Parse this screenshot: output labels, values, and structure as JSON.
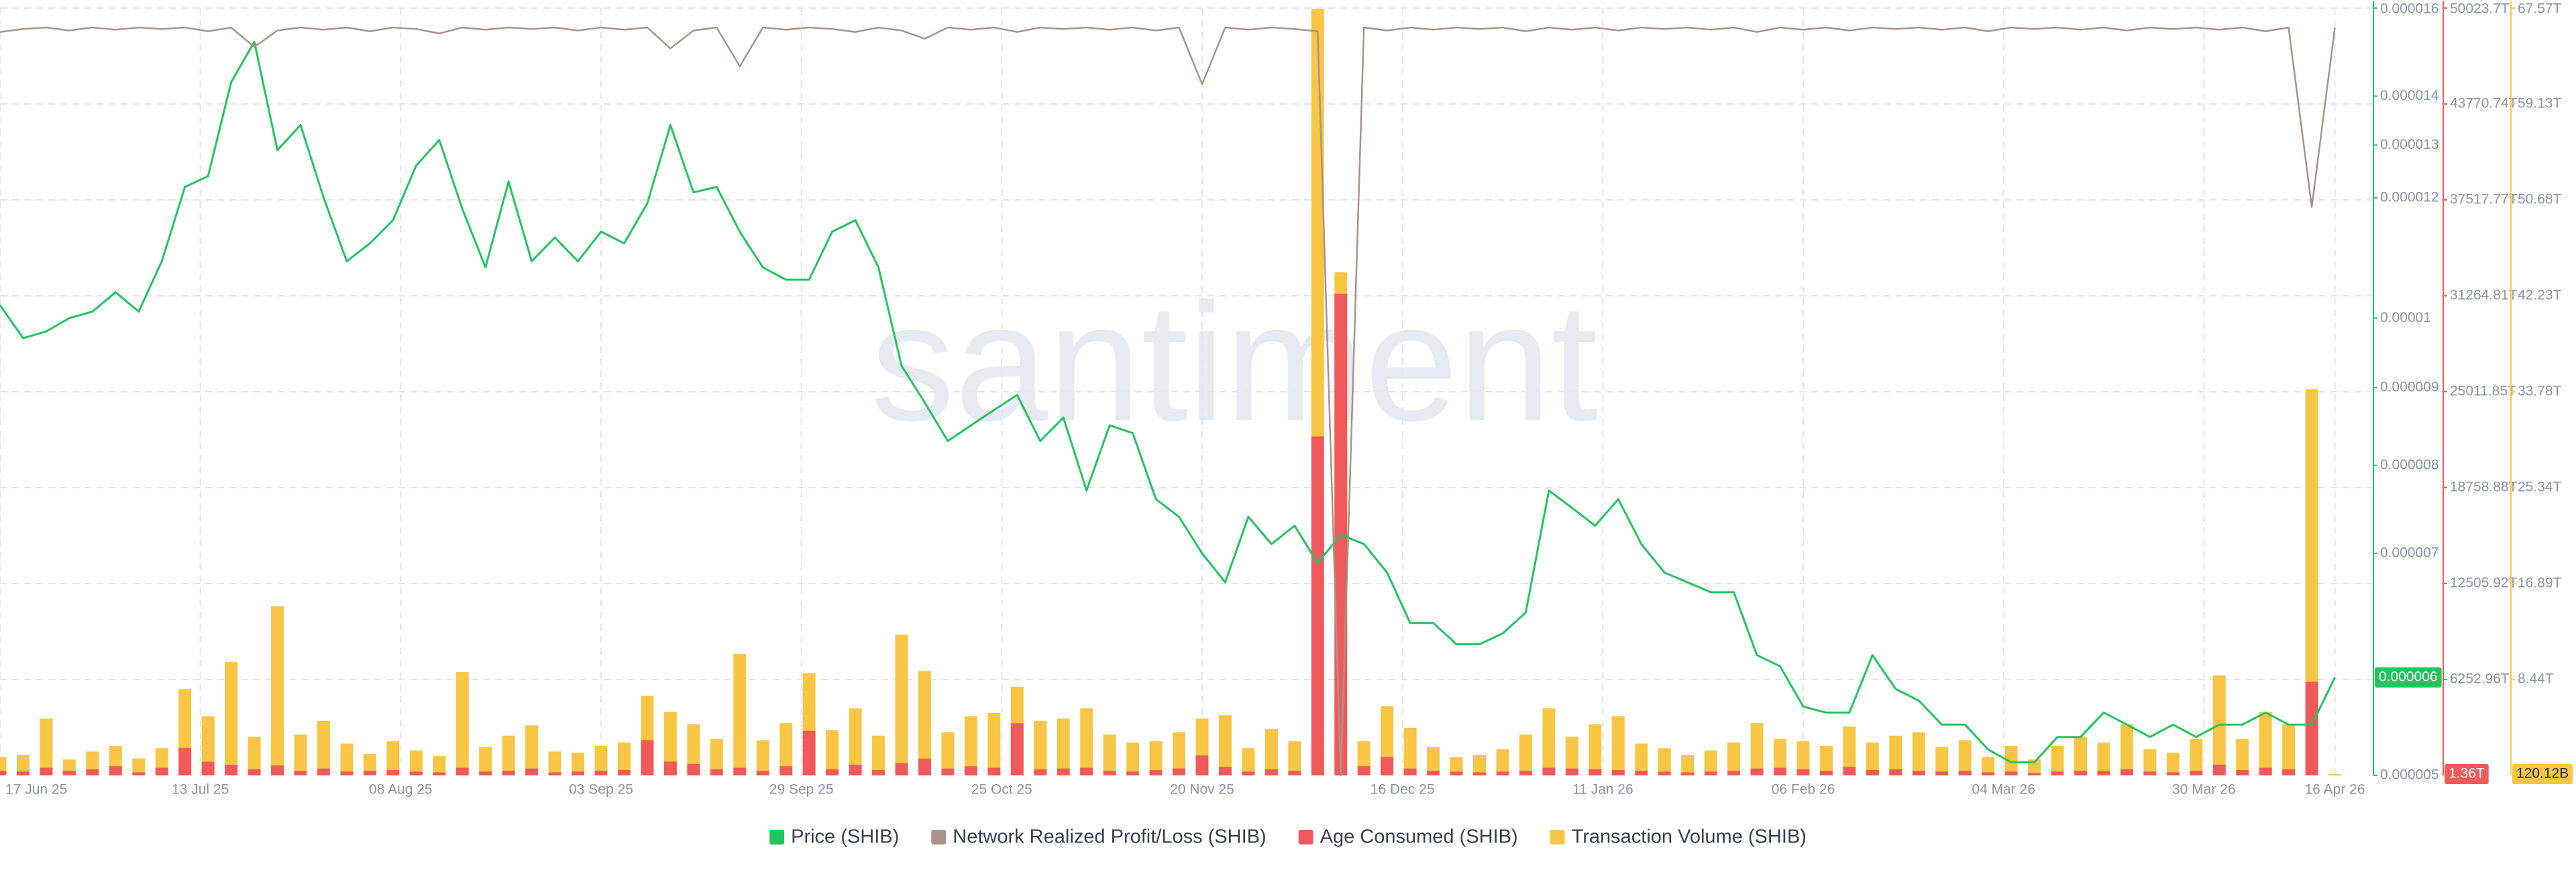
{
  "chart_data": {
    "type": "combo",
    "watermark": "santiment",
    "legend": "bottom",
    "grid": true,
    "x": [
      "17 Jun 25",
      "20 Jun 25",
      "23 Jun 25",
      "26 Jun 25",
      "29 Jun 25",
      "02 Jul 25",
      "05 Jul 25",
      "08 Jul 25",
      "11 Jul 25",
      "14 Jul 25",
      "17 Jul 25",
      "20 Jul 25",
      "23 Jul 25",
      "26 Jul 25",
      "29 Jul 25",
      "01 Aug 25",
      "04 Aug 25",
      "07 Aug 25",
      "10 Aug 25",
      "13 Aug 25",
      "16 Aug 25",
      "19 Aug 25",
      "22 Aug 25",
      "25 Aug 25",
      "28 Aug 25",
      "31 Aug 25",
      "03 Sep 25",
      "06 Sep 25",
      "09 Sep 25",
      "12 Sep 25",
      "15 Sep 25",
      "18 Sep 25",
      "21 Sep 25",
      "24 Sep 25",
      "27 Sep 25",
      "30 Sep 25",
      "03 Oct 25",
      "06 Oct 25",
      "09 Oct 25",
      "12 Oct 25",
      "15 Oct 25",
      "18 Oct 25",
      "21 Oct 25",
      "24 Oct 25",
      "27 Oct 25",
      "30 Oct 25",
      "02 Nov 25",
      "05 Nov 25",
      "08 Nov 25",
      "11 Nov 25",
      "14 Nov 25",
      "17 Nov 25",
      "20 Nov 25",
      "23 Nov 25",
      "26 Nov 25",
      "29 Nov 25",
      "02 Dec 25",
      "05 Dec 25",
      "08 Dec 25",
      "11 Dec 25",
      "14 Dec 25",
      "17 Dec 25",
      "20 Dec 25",
      "23 Dec 25",
      "26 Dec 25",
      "29 Dec 25",
      "01 Jan 26",
      "04 Jan 26",
      "07 Jan 26",
      "10 Jan 26",
      "13 Jan 26",
      "16 Jan 26",
      "19 Jan 26",
      "22 Jan 26",
      "25 Jan 26",
      "28 Jan 26",
      "31 Jan 26",
      "03 Feb 26",
      "06 Feb 26",
      "09 Feb 26",
      "12 Feb 26",
      "15 Feb 26",
      "18 Feb 26",
      "21 Feb 26",
      "24 Feb 26",
      "27 Feb 26",
      "02 Mar 26",
      "05 Mar 26",
      "08 Mar 26",
      "11 Mar 26",
      "14 Mar 26",
      "17 Mar 26",
      "20 Mar 26",
      "23 Mar 26",
      "26 Mar 26",
      "29 Mar 26",
      "01 Apr 26",
      "04 Apr 26",
      "07 Apr 26",
      "10 Apr 26",
      "13 Apr 26",
      "16 Apr 26"
    ],
    "xlim": [
      "17 Jun 25",
      "21 Apr 26"
    ],
    "xticks": [
      "17 Jun 25",
      "13 Jul 25",
      "08 Aug 25",
      "03 Sep 25",
      "29 Sep 25",
      "25 Oct 25",
      "20 Nov 25",
      "16 Dec 25",
      "11 Jan 26",
      "06 Feb 26",
      "04 Mar 26",
      "30 Mar 26",
      "16 Apr 26"
    ],
    "ylim": [
      5e-06,
      1.6e-05
    ],
    "ylog": true,
    "yticks": [
      1.6e-05,
      1.4e-05,
      1.3e-05,
      1.2e-05,
      1e-05,
      9e-06,
      8e-06,
      7e-06,
      5e-06
    ],
    "y2lim": [
      0,
      50023.7
    ],
    "y2ticks": [
      {
        "value": 50023.7,
        "label": "50023.7T"
      },
      {
        "value": 43770.74,
        "label": "43770.74T"
      },
      {
        "value": 37517.77,
        "label": "37517.77T"
      },
      {
        "value": 31264.81,
        "label": "31264.81T"
      },
      {
        "value": 25011.85,
        "label": "25011.85T"
      },
      {
        "value": 18758.88,
        "label": "18758.88T"
      },
      {
        "value": 12505.92,
        "label": "12505.92T"
      },
      {
        "value": 6252.96,
        "label": "6252.96T"
      }
    ],
    "y3lim": [
      0,
      67.57
    ],
    "y3ticks": [
      {
        "value": 67.57,
        "label": "67.57T"
      },
      {
        "value": 59.13,
        "label": "59.13T"
      },
      {
        "value": 50.68,
        "label": "50.68T"
      },
      {
        "value": 42.23,
        "label": "42.23T"
      },
      {
        "value": 33.78,
        "label": "33.78T"
      },
      {
        "value": 25.34,
        "label": "25.34T"
      },
      {
        "value": 16.89,
        "label": "16.89T"
      },
      {
        "value": 8.44,
        "label": "8.44T"
      }
    ],
    "y4lim": [
      -100,
      2.6
    ],
    "series": [
      {
        "name": "Price (SHIB)",
        "type": "line",
        "axis": "y",
        "color": "#22c55e",
        "values": [
          1.02e-05,
          9.7e-06,
          9.8e-06,
          1e-05,
          1.01e-05,
          1.04e-05,
          1.01e-05,
          1.09e-05,
          1.22e-05,
          1.24e-05,
          1.43e-05,
          1.52e-05,
          1.29e-05,
          1.34e-05,
          1.2e-05,
          1.09e-05,
          1.12e-05,
          1.16e-05,
          1.26e-05,
          1.31e-05,
          1.18e-05,
          1.08e-05,
          1.23e-05,
          1.09e-05,
          1.13e-05,
          1.09e-05,
          1.14e-05,
          1.12e-05,
          1.19e-05,
          1.34e-05,
          1.21e-05,
          1.22e-05,
          1.14e-05,
          1.08e-05,
          1.06e-05,
          1.06e-05,
          1.14e-05,
          1.16e-05,
          1.08e-05,
          9.3e-06,
          8.8e-06,
          8.3e-06,
          8.5e-06,
          8.7e-06,
          8.9e-06,
          8.3e-06,
          8.6e-06,
          7.7e-06,
          8.5e-06,
          8.4e-06,
          7.6e-06,
          7.4e-06,
          7e-06,
          6.7e-06,
          7.4e-06,
          7.1e-06,
          7.3e-06,
          6.9e-06,
          7.2e-06,
          7.1e-06,
          6.8e-06,
          6.3e-06,
          6.3e-06,
          6.1e-06,
          6.1e-06,
          6.2e-06,
          6.4e-06,
          7.7e-06,
          7.5e-06,
          7.3e-06,
          7.6e-06,
          7.1e-06,
          6.8e-06,
          6.7e-06,
          6.6e-06,
          6.6e-06,
          6e-06,
          5.9e-06,
          5.55e-06,
          5.5e-06,
          5.5e-06,
          6e-06,
          5.7e-06,
          5.6e-06,
          5.4e-06,
          5.4e-06,
          5.2e-06,
          5.1e-06,
          5.1e-06,
          5.3e-06,
          5.3e-06,
          5.5e-06,
          5.4e-06,
          5.3e-06,
          5.4e-06,
          5.3e-06,
          5.4e-06,
          5.4e-06,
          5.5e-06,
          5.4e-06,
          5.4e-06,
          5.8e-06
        ],
        "value_labels": {
          "101": "0.000006"
        }
      },
      {
        "name": "Network Realized Profit/Loss (SHIB)",
        "type": "line",
        "axis": "y4",
        "color": "#a8948a",
        "values": [
          -0.6,
          -0.2,
          0,
          -0.4,
          0,
          -0.3,
          0,
          -0.2,
          0,
          -0.5,
          0,
          -2.6,
          -0.4,
          0,
          -0.3,
          0,
          -0.5,
          0,
          -0.2,
          -0.8,
          0,
          -0.3,
          0,
          -0.2,
          0,
          -0.4,
          0,
          -0.3,
          0,
          -2.8,
          -0.4,
          0,
          -5.2,
          0,
          -0.3,
          0,
          -0.2,
          -0.6,
          0,
          -0.4,
          -1.5,
          0,
          -0.3,
          0,
          -0.6,
          0,
          -0.2,
          0,
          -0.3,
          0,
          -0.4,
          0,
          -7.6,
          0,
          -0.3,
          0,
          -0.2,
          -0.5,
          -100,
          0,
          -0.4,
          0,
          -0.3,
          0,
          -0.2,
          0,
          -0.5,
          0,
          -0.3,
          0,
          -0.4,
          0,
          -0.2,
          0,
          -0.3,
          0,
          -0.6,
          0,
          -0.3,
          0,
          -0.4,
          0,
          -0.2,
          0,
          -0.3,
          0,
          -0.5,
          0,
          -0.2,
          0,
          -0.3,
          0,
          -0.4,
          0,
          -0.2,
          0,
          -0.3,
          0,
          -0.5,
          0,
          -24,
          0
        ]
      },
      {
        "name": "Age Consumed (SHIB)",
        "type": "bar",
        "axis": "y2",
        "color": "#f05a5a",
        "values": [
          300,
          250,
          500,
          300,
          400,
          600,
          200,
          500,
          1800,
          900,
          700,
          400,
          650,
          300,
          450,
          250,
          300,
          350,
          250,
          200,
          500,
          250,
          300,
          450,
          200,
          250,
          300,
          350,
          2300,
          900,
          750,
          400,
          500,
          300,
          600,
          2900,
          400,
          700,
          350,
          800,
          1100,
          450,
          600,
          500,
          3400,
          400,
          450,
          500,
          300,
          250,
          350,
          450,
          1300,
          550,
          250,
          400,
          300,
          22100,
          31400,
          600,
          1200,
          450,
          300,
          250,
          200,
          250,
          300,
          500,
          450,
          400,
          350,
          300,
          250,
          200,
          250,
          300,
          450,
          500,
          400,
          300,
          550,
          350,
          400,
          300,
          250,
          300,
          200,
          250,
          150,
          250,
          300,
          300,
          400,
          250,
          200,
          300,
          700,
          350,
          500,
          400,
          6100,
          1.36
        ],
        "value_labels": {
          "101": "1.36T"
        }
      },
      {
        "name": "Transaction Volume (SHIB)",
        "type": "bar",
        "axis": "y3",
        "color": "#f8c545",
        "values": [
          1.6,
          1.8,
          5.0,
          1.4,
          2.1,
          2.6,
          1.5,
          2.4,
          7.6,
          5.2,
          10.0,
          3.4,
          14.9,
          3.6,
          4.8,
          2.8,
          1.9,
          3.0,
          2.2,
          1.7,
          9.1,
          2.5,
          3.5,
          4.4,
          2.1,
          2.0,
          2.6,
          2.9,
          7.0,
          5.6,
          4.5,
          3.2,
          10.7,
          3.1,
          4.6,
          9.0,
          4.0,
          5.9,
          3.5,
          12.4,
          9.2,
          3.8,
          5.2,
          5.5,
          7.8,
          4.8,
          5.0,
          5.9,
          3.6,
          2.9,
          3.0,
          3.8,
          5.0,
          5.3,
          2.4,
          4.1,
          3.0,
          67.5,
          44.3,
          3.0,
          6.1,
          4.2,
          2.5,
          1.6,
          1.8,
          2.3,
          3.6,
          5.9,
          3.4,
          4.5,
          5.2,
          2.8,
          2.4,
          1.8,
          2.2,
          2.9,
          4.6,
          3.2,
          3.0,
          2.6,
          4.3,
          2.9,
          3.5,
          3.8,
          2.5,
          3.1,
          1.6,
          2.6,
          1.4,
          2.6,
          3.4,
          2.9,
          4.5,
          2.3,
          2.0,
          3.2,
          8.8,
          3.2,
          5.6,
          4.5,
          34.0,
          0.12012
        ],
        "value_labels": {
          "101": "120.12B"
        }
      }
    ]
  }
}
